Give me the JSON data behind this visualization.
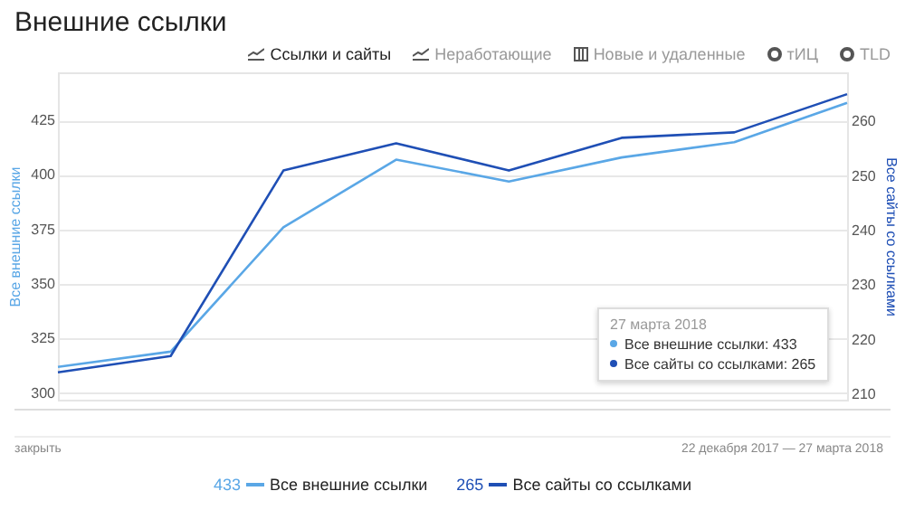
{
  "chart_data": {
    "type": "line",
    "title": "Внешние ссылки",
    "categories": [
      null,
      null,
      null,
      null,
      null,
      null,
      null,
      null
    ],
    "ylabel": "Все внешние ссылки",
    "y2label": "Все сайты со ссылками",
    "ylim": [
      297,
      447
    ],
    "yticks": [
      300,
      325,
      350,
      375,
      400,
      425
    ],
    "y2lim": [
      209,
      269
    ],
    "y2ticks": [
      210,
      220,
      230,
      240,
      250,
      260
    ],
    "series": [
      {
        "name": "Все внешние ссылки",
        "color": "#5aa7e6",
        "values": [
          312,
          319,
          376,
          407,
          397,
          408,
          415,
          433
        ]
      },
      {
        "name": "Все сайты со ссылками",
        "color": "#1f4fb5",
        "axis": "y2",
        "values": [
          214,
          217,
          251,
          256,
          251,
          257,
          258,
          265
        ]
      }
    ],
    "grid": "y",
    "legend": "bottom",
    "tick_labels": "y",
    "marker": "none",
    "line_style": "solid",
    "annotations": [
      "Ссылки и сайты",
      "Неработающие",
      "Новые и удаленные",
      "тИЦ",
      "TLD",
      "27 марта 2018",
      "Все внешние ссылки: 433",
      "Все сайты со ссылками: 265",
      "закрыть",
      "22 декабря 2017 — 27 марта 2018",
      "433",
      "265"
    ]
  }
}
